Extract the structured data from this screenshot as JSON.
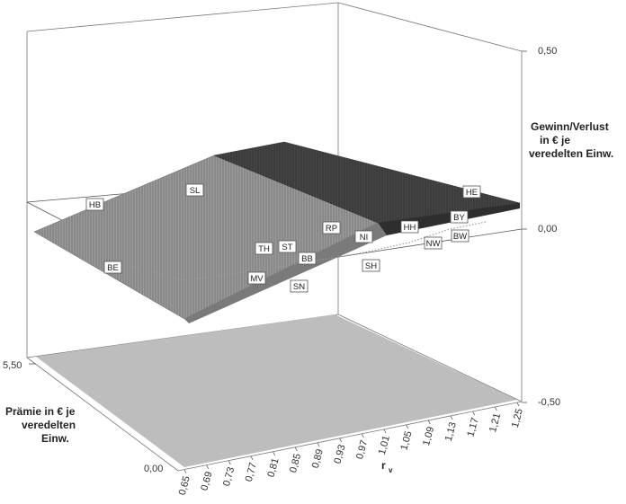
{
  "chart_data": {
    "type": "surface",
    "title": "",
    "z_axis": {
      "label_lines": [
        "Gewinn/Verlust",
        "in € je",
        "veredelten Einw."
      ],
      "ticks": [
        "0,50",
        "0,00",
        "-0,50"
      ],
      "range": [
        -0.5,
        0.5
      ]
    },
    "x_axis": {
      "label": "r",
      "label_subscript": "v",
      "ticks": [
        "0,65",
        "0,69",
        "0,73",
        "0,77",
        "0,81",
        "0,85",
        "0,89",
        "0,93",
        "0,97",
        "1,01",
        "1,05",
        "1,09",
        "1,13",
        "1,17",
        "1,21",
        "1,25"
      ],
      "range": [
        0.65,
        1.25
      ]
    },
    "y_axis": {
      "label_lines": [
        "Prämie in € je",
        "veredelten",
        "Einw."
      ],
      "ticks": [
        "5,50",
        "0,00"
      ],
      "range": [
        0,
        5.5
      ]
    },
    "surface": {
      "loss_color": "#8c8c8c",
      "gain_color": "#3a3a3a",
      "base_color": "#bdbdbd"
    },
    "states": [
      {
        "code": "HB"
      },
      {
        "code": "SL"
      },
      {
        "code": "HE"
      },
      {
        "code": "RP"
      },
      {
        "code": "NI"
      },
      {
        "code": "HH"
      },
      {
        "code": "BY"
      },
      {
        "code": "TH"
      },
      {
        "code": "ST"
      },
      {
        "code": "BB"
      },
      {
        "code": "SH"
      },
      {
        "code": "NW"
      },
      {
        "code": "BW"
      },
      {
        "code": "BE"
      },
      {
        "code": "MV"
      },
      {
        "code": "SN"
      }
    ]
  }
}
